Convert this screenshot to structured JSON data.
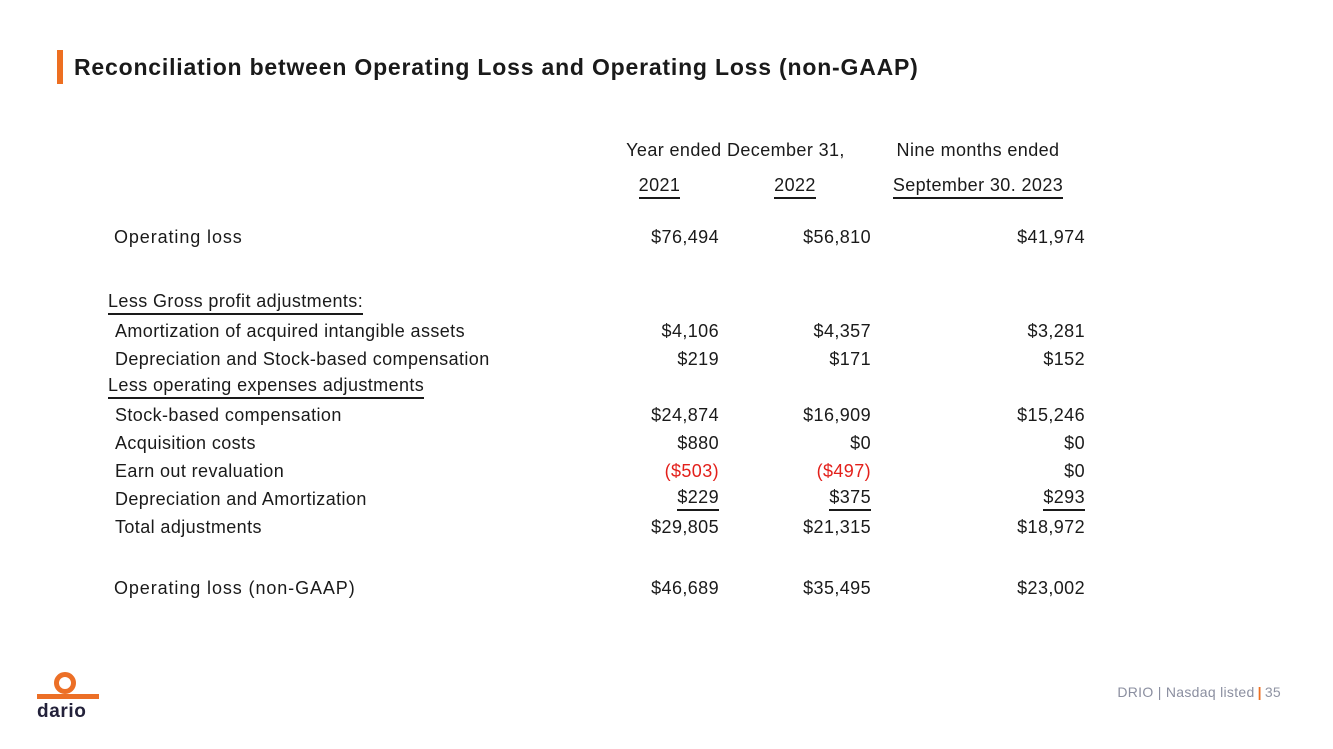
{
  "slide": {
    "title": "Reconciliation between Operating Loss and Operating Loss (non-GAAP)"
  },
  "table": {
    "header": {
      "year_group": "Year ended December 31,",
      "nine_months_line1": "Nine months ended",
      "nine_months_line2": "September 30. 2023",
      "col_2021": "2021",
      "col_2022": "2022"
    },
    "rows": {
      "operating_loss": {
        "label": "Operating loss",
        "v2021": "$76,494",
        "v2022": "$56,810",
        "v2023": "$41,974"
      },
      "section_gross": {
        "label": "Less Gross profit adjustments:"
      },
      "amortization_intangibles": {
        "label": "Amortization of acquired intangible assets",
        "v2021": "$4,106",
        "v2022": "$4,357",
        "v2023": "$3,281"
      },
      "depreciation_sbc": {
        "label": "Depreciation and Stock-based compensation",
        "v2021": "$219",
        "v2022": "$171",
        "v2023": "$152"
      },
      "section_opex": {
        "label": "Less operating expenses adjustments"
      },
      "stock_based_comp": {
        "label": "Stock-based compensation",
        "v2021": "$24,874",
        "v2022": "$16,909",
        "v2023": "$15,246"
      },
      "acquisition_costs": {
        "label": "Acquisition costs",
        "v2021": "$880",
        "v2022": "$0",
        "v2023": "$0"
      },
      "earn_out_revaluation": {
        "label": "Earn out revaluation",
        "v2021": "($503)",
        "v2022": "($497)",
        "v2023": "$0"
      },
      "depreciation_amortization": {
        "label": "Depreciation and Amortization",
        "v2021": "$229",
        "v2022": "$375",
        "v2023": "$293"
      },
      "total_adjustments": {
        "label": "Total adjustments",
        "v2021": "$29,805",
        "v2022": "$21,315",
        "v2023": "$18,972"
      },
      "operating_loss_non_gaap": {
        "label": "Operating loss (non-GAAP)",
        "v2021": "$46,689",
        "v2022": "$35,495",
        "v2023": "$23,002"
      }
    }
  },
  "footer": {
    "logo_wordmark": "dario",
    "ticker_text": "DRIO | Nasdaq listed",
    "page_number": "35"
  },
  "colors": {
    "accent_orange": "#ED6F21",
    "negative_red": "#E3201B",
    "footer_gray": "#8B8FA0",
    "logo_navy": "#23213A"
  }
}
